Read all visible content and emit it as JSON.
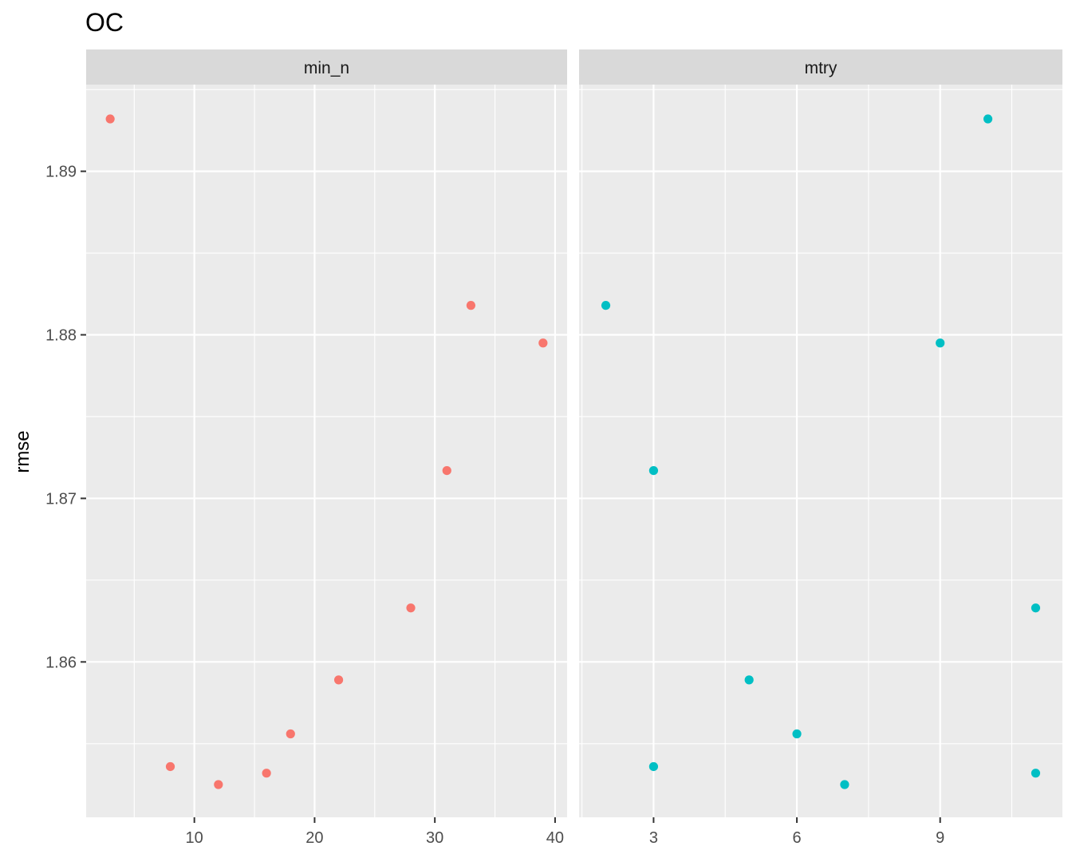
{
  "chart_data": {
    "type": "scatter",
    "title": "OC",
    "ylabel": "rmse",
    "xlabel": "",
    "ylim": [
      1.8505,
      1.8953
    ],
    "y_ticks": [
      1.86,
      1.87,
      1.88,
      1.89
    ],
    "y_tick_labels": [
      "1.86",
      "1.87",
      "1.88",
      "1.89"
    ],
    "grid": true,
    "legend": "none",
    "panels": [
      {
        "strip": "min_n",
        "color": "#F8766D",
        "xlim": [
          1.0,
          41.0
        ],
        "x_ticks": [
          10,
          20,
          30,
          40
        ],
        "x_tick_labels": [
          "10",
          "20",
          "30",
          "40"
        ],
        "points": [
          {
            "x": 3,
            "y": 1.8932
          },
          {
            "x": 8,
            "y": 1.8536
          },
          {
            "x": 12,
            "y": 1.8525
          },
          {
            "x": 16,
            "y": 1.8532
          },
          {
            "x": 18,
            "y": 1.8556
          },
          {
            "x": 22,
            "y": 1.8589
          },
          {
            "x": 28,
            "y": 1.8633
          },
          {
            "x": 31,
            "y": 1.8717
          },
          {
            "x": 33,
            "y": 1.8818
          },
          {
            "x": 39,
            "y": 1.8795
          }
        ]
      },
      {
        "strip": "mtry",
        "color": "#00BFC4",
        "xlim": [
          1.44,
          11.56
        ],
        "x_ticks": [
          3,
          6,
          9
        ],
        "x_tick_labels": [
          "3",
          "6",
          "9"
        ],
        "points": [
          {
            "x": 2,
            "y": 1.8818
          },
          {
            "x": 3,
            "y": 1.8717
          },
          {
            "x": 3,
            "y": 1.8536
          },
          {
            "x": 5,
            "y": 1.8589
          },
          {
            "x": 6,
            "y": 1.8556
          },
          {
            "x": 7,
            "y": 1.8525
          },
          {
            "x": 9,
            "y": 1.8795
          },
          {
            "x": 10,
            "y": 1.8932
          },
          {
            "x": 11,
            "y": 1.8633
          },
          {
            "x": 11,
            "y": 1.8532
          }
        ]
      }
    ]
  }
}
